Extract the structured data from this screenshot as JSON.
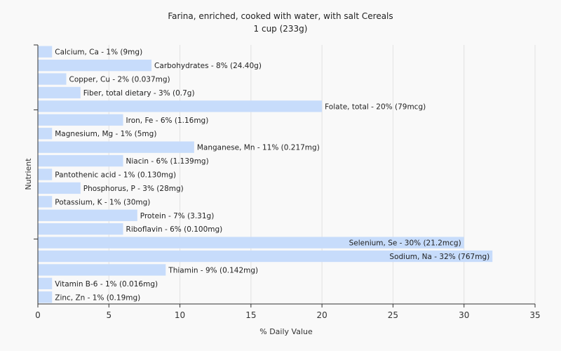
{
  "chart_data": {
    "type": "bar",
    "orientation": "horizontal",
    "title": "Farina, enriched, cooked with water, with salt Cereals",
    "subtitle": "1 cup (233g)",
    "xlabel": "% Daily Value",
    "ylabel": "Nutrient",
    "xlim": [
      0,
      35
    ],
    "xticks": [
      0,
      5,
      10,
      15,
      20,
      25,
      30,
      35
    ],
    "grid": true,
    "colors": {
      "bar": "#c7dcfb",
      "grid": "#e2e2e2",
      "axis": "#333333",
      "background": "#f9f9f9"
    },
    "categories": [
      "Calcium, Ca",
      "Carbohydrates",
      "Copper, Cu",
      "Fiber, total dietary",
      "Folate, total",
      "Iron, Fe",
      "Magnesium, Mg",
      "Manganese, Mn",
      "Niacin",
      "Pantothenic acid",
      "Phosphorus, P",
      "Potassium, K",
      "Protein",
      "Riboflavin",
      "Selenium, Se",
      "Sodium, Na",
      "Thiamin",
      "Vitamin B-6",
      "Zinc, Zn"
    ],
    "values": [
      1,
      8,
      2,
      3,
      20,
      6,
      1,
      11,
      6,
      1,
      3,
      1,
      7,
      6,
      30,
      32,
      9,
      1,
      1
    ],
    "labels": [
      "Calcium, Ca - 1% (9mg)",
      "Carbohydrates - 8% (24.40g)",
      "Copper, Cu - 2% (0.037mg)",
      "Fiber, total dietary - 3% (0.7g)",
      "Folate, total - 20% (79mcg)",
      "Iron, Fe - 6% (1.16mg)",
      "Magnesium, Mg - 1% (5mg)",
      "Manganese, Mn - 11% (0.217mg)",
      "Niacin - 6% (1.139mg)",
      "Pantothenic acid - 1% (0.130mg)",
      "Phosphorus, P - 3% (28mg)",
      "Potassium, K - 1% (30mg)",
      "Protein - 7% (3.31g)",
      "Riboflavin - 6% (0.100mg)",
      "Selenium, Se - 30% (21.2mcg)",
      "Sodium, Na - 32% (767mg)",
      "Thiamin - 9% (0.142mg)",
      "Vitamin B-6 - 1% (0.016mg)",
      "Zinc, Zn - 1% (0.19mg)"
    ]
  }
}
